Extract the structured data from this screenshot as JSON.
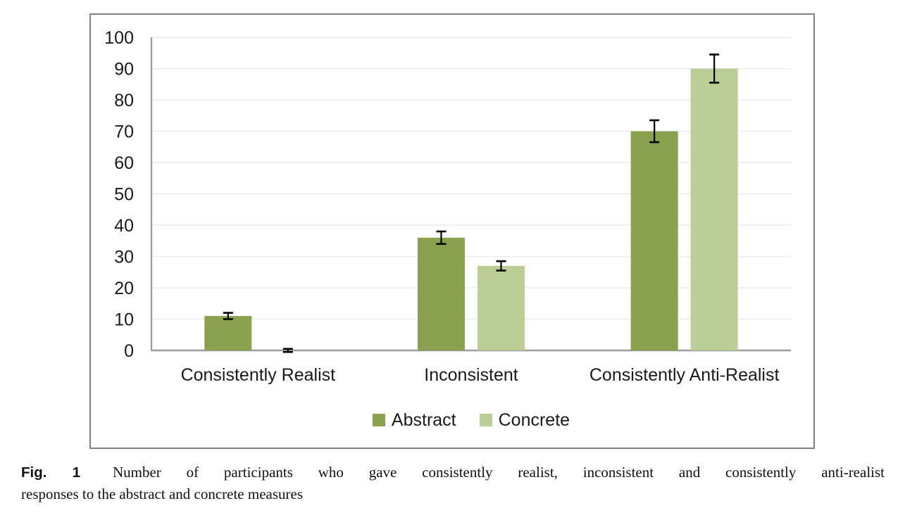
{
  "figure": {
    "caption_label": "Fig. 1",
    "caption_line1": "Number of participants who gave consistently realist, inconsistent and consistently anti-realist",
    "caption_line2": "responses to the abstract and concrete measures"
  },
  "chart_data": {
    "type": "bar",
    "title": "",
    "xlabel": "",
    "ylabel": "",
    "categories": [
      "Consistently Realist",
      "Inconsistent",
      "Consistently Anti-Realist"
    ],
    "series": [
      {
        "name": "Abstract",
        "color": "#8aa24f",
        "values": [
          11,
          36,
          70
        ],
        "errors": [
          1,
          2,
          3.5
        ]
      },
      {
        "name": "Concrete",
        "color": "#bbce96",
        "values": [
          0,
          27,
          90
        ],
        "errors": [
          0.5,
          1.5,
          4.5
        ]
      }
    ],
    "ylim": [
      0,
      100
    ],
    "yticks": [
      0,
      10,
      20,
      30,
      40,
      50,
      60,
      70,
      80,
      90,
      100
    ],
    "grid": true,
    "legend_position": "bottom-center",
    "error_bars": true,
    "colors": {
      "axis": "#9d9d9d",
      "grid": "#ececec",
      "error_bar": "#000000",
      "text": "#1a1a1a",
      "frame_border": "#7f7f7f"
    }
  }
}
